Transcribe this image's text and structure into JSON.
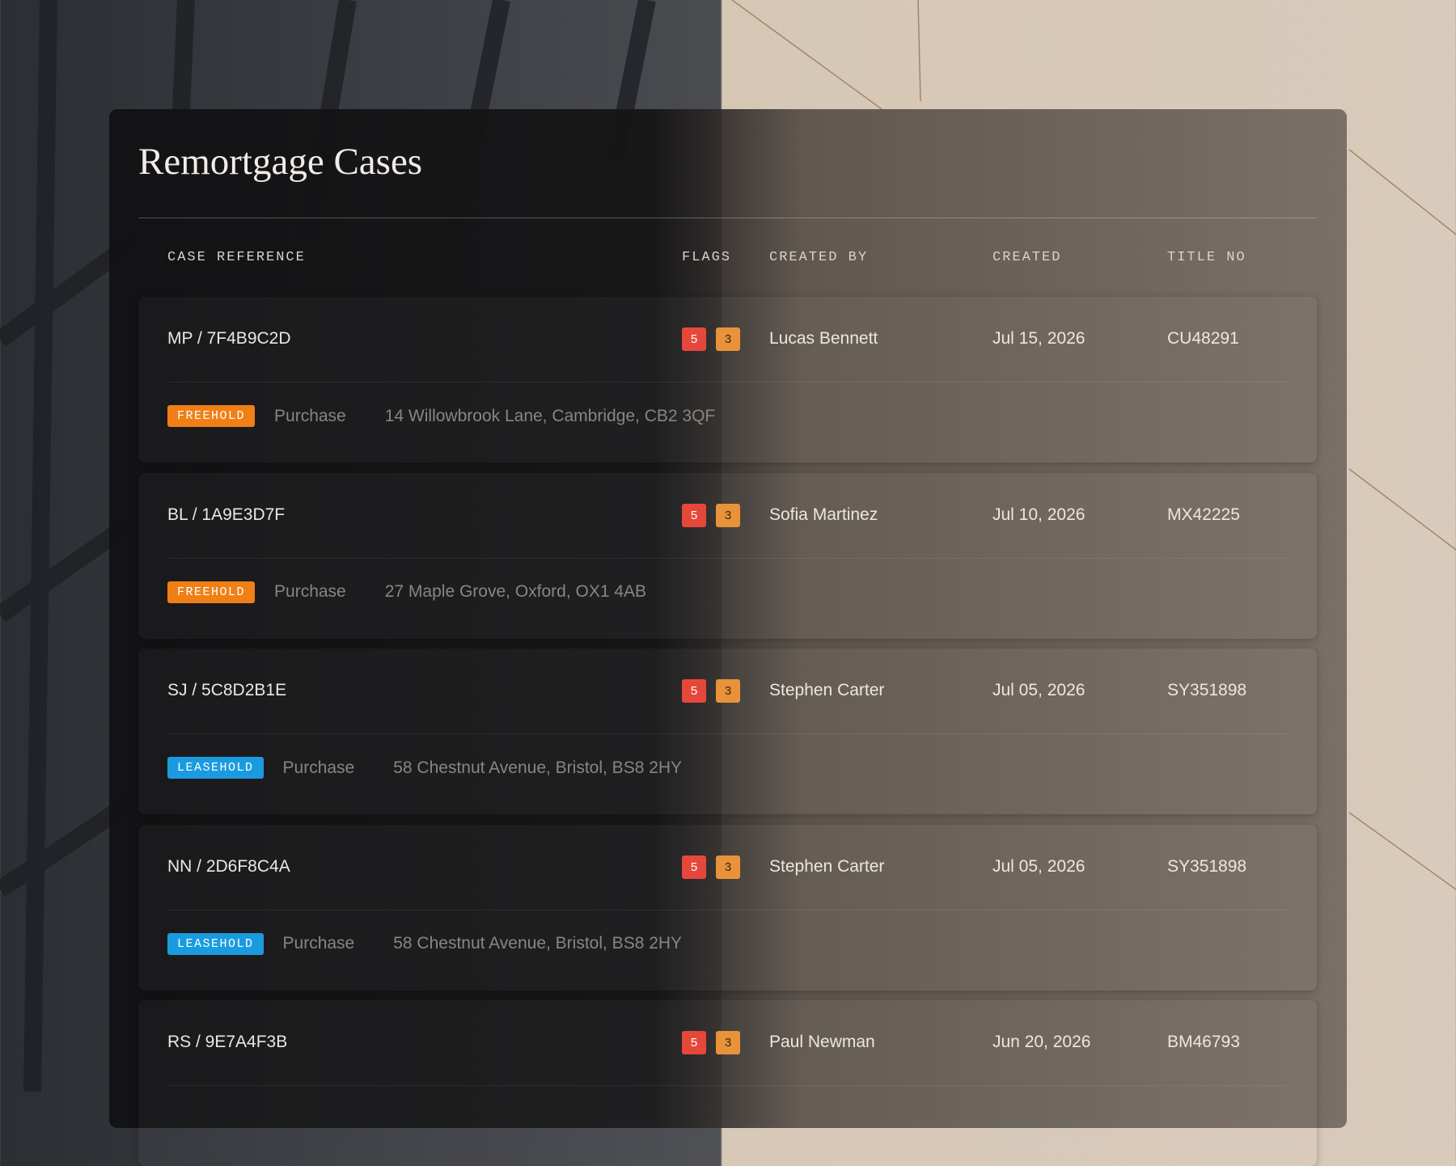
{
  "header": {
    "title": "Remortgage Cases"
  },
  "table": {
    "columns": [
      "CASE REFERENCE",
      "FLAGS",
      "CREATED BY",
      "CREATED",
      "TITLE NO"
    ],
    "rows": [
      {
        "reference": "MP / 7F4B9C2D",
        "flags": [
          5,
          3
        ],
        "created_by": "Lucas Bennett",
        "created": "Jul 15, 2026",
        "title_no": "CU48291",
        "tenure": {
          "label": "FREEHOLD",
          "color": "#f07f16"
        },
        "type": "Purchase",
        "address": "14 Willowbrook Lane, Cambridge, CB2 3QF"
      },
      {
        "reference": "BL / 1A9E3D7F",
        "flags": [
          5,
          3
        ],
        "created_by": "Sofia Martinez",
        "created": "Jul 10, 2026",
        "title_no": "MX42225",
        "tenure": {
          "label": "FREEHOLD",
          "color": "#f07f16"
        },
        "type": "Purchase",
        "address": "27 Maple Grove, Oxford, OX1 4AB"
      },
      {
        "reference": "SJ / 5C8D2B1E",
        "flags": [
          5,
          3
        ],
        "created_by": "Stephen Carter",
        "created": "Jul 05, 2026",
        "title_no": "SY351898",
        "tenure": {
          "label": "LEASEHOLD",
          "color": "#1a9be0"
        },
        "type": "Purchase",
        "address": "58 Chestnut Avenue, Bristol, BS8 2HY"
      },
      {
        "reference": "NN / 2D6F8C4A",
        "flags": [
          5,
          3
        ],
        "created_by": "Stephen Carter",
        "created": "Jul 05, 2026",
        "title_no": "SY351898",
        "tenure": {
          "label": "LEASEHOLD",
          "color": "#1a9be0"
        },
        "type": "Purchase",
        "address": "58 Chestnut Avenue, Bristol, BS8 2HY"
      },
      {
        "reference": "RS / 9E7A4F3B",
        "flags": [
          5,
          3
        ],
        "created_by": "Paul Newman",
        "created": "Jun 20, 2026",
        "title_no": "BM46793"
      }
    ]
  }
}
